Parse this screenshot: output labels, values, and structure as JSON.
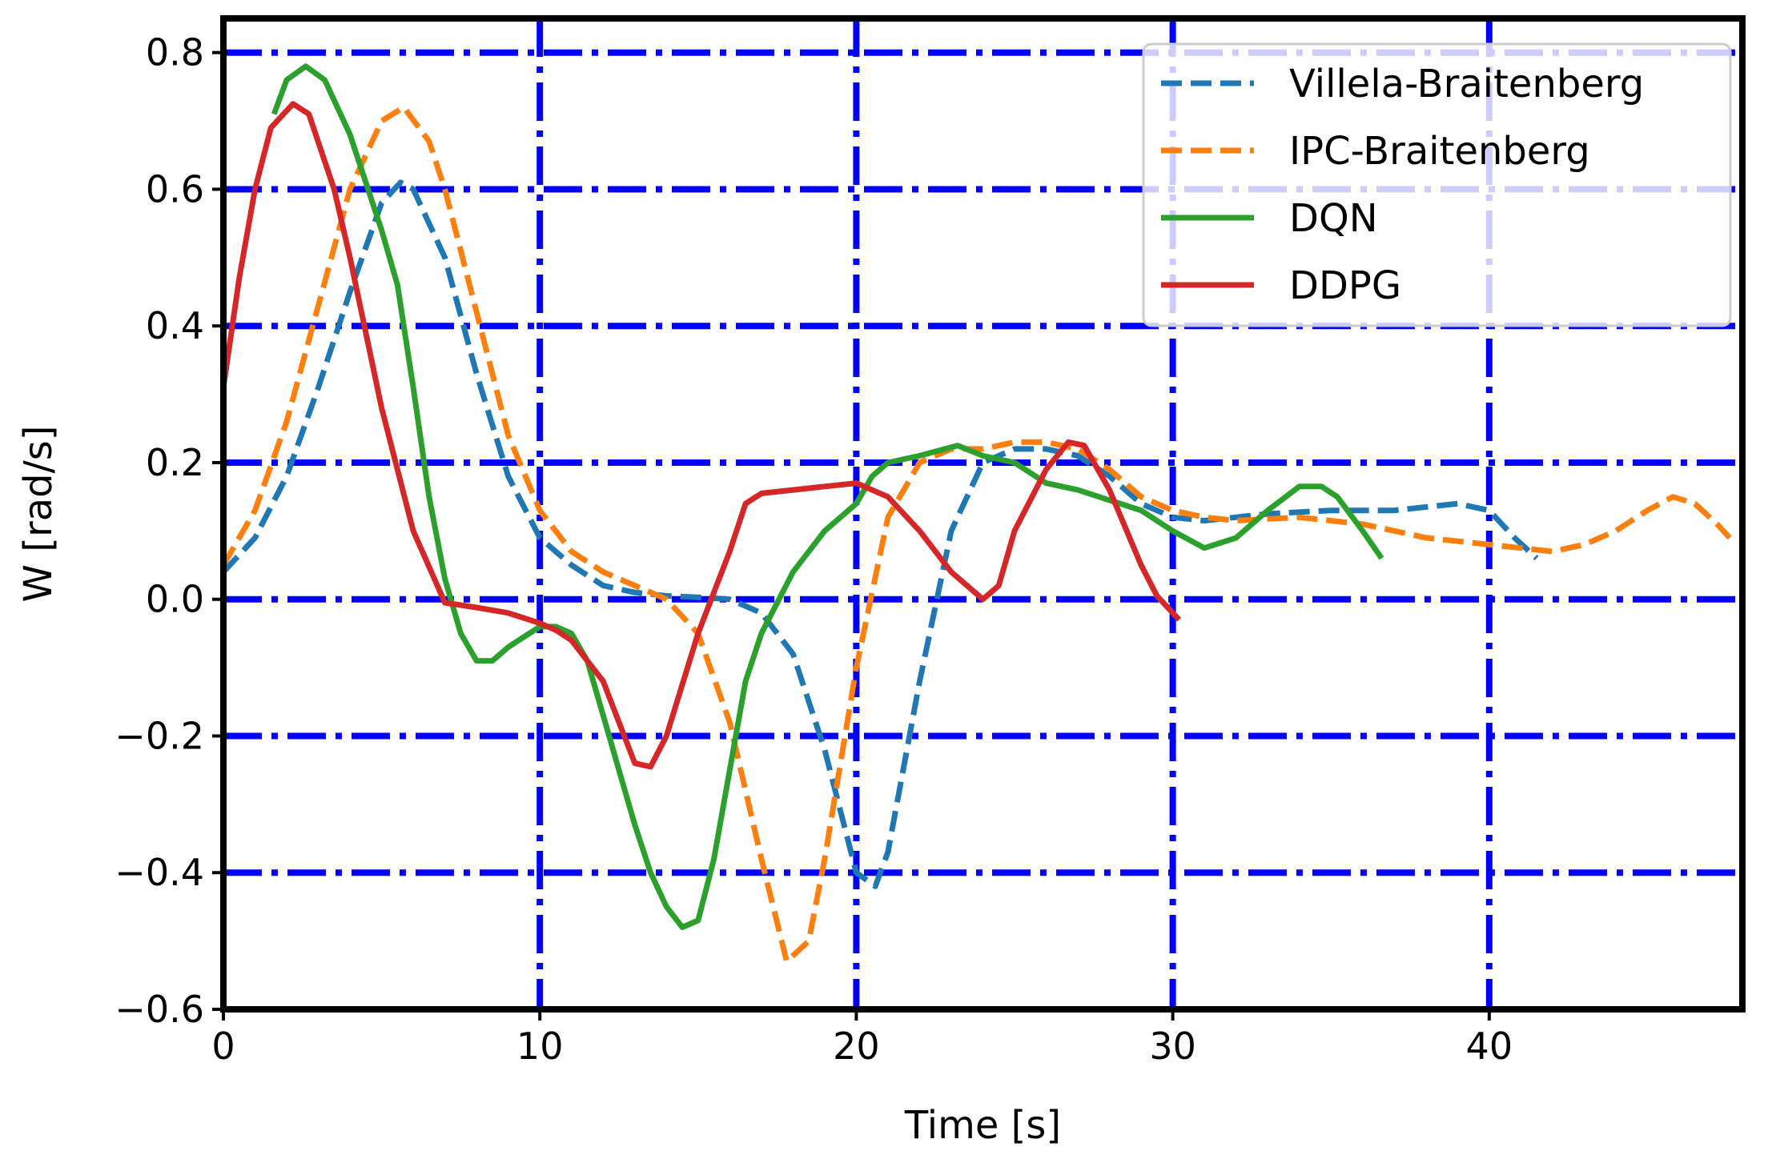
{
  "chart_data": {
    "type": "line",
    "xlabel": "Time [s]",
    "ylabel": "W [rad/s]",
    "xlim": [
      0,
      48
    ],
    "ylim": [
      -0.6,
      0.85
    ],
    "xticks": [
      0,
      10,
      20,
      30,
      40
    ],
    "xtick_labels": [
      "0",
      "10",
      "20",
      "30",
      "40"
    ],
    "yticks": [
      -0.6,
      -0.4,
      -0.2,
      0.0,
      0.2,
      0.4,
      0.6,
      0.8
    ],
    "ytick_labels": [
      "−0.6",
      "−0.4",
      "−0.2",
      "0.0",
      "0.2",
      "0.4",
      "0.6",
      "0.8"
    ],
    "grid": true,
    "grid_color": "#0000ff",
    "grid_style": "dash-dot",
    "legend_position": "top-right",
    "series": [
      {
        "name": "Villela-Braitenberg",
        "color": "#1f77b4",
        "style": "dashed",
        "points": [
          [
            0,
            0.04
          ],
          [
            1,
            0.09
          ],
          [
            2,
            0.18
          ],
          [
            3,
            0.31
          ],
          [
            4,
            0.45
          ],
          [
            5,
            0.58
          ],
          [
            5.6,
            0.61
          ],
          [
            6,
            0.6
          ],
          [
            7,
            0.5
          ],
          [
            8,
            0.33
          ],
          [
            9,
            0.18
          ],
          [
            10,
            0.09
          ],
          [
            11,
            0.05
          ],
          [
            12,
            0.02
          ],
          [
            13,
            0.01
          ],
          [
            14,
            0.005
          ],
          [
            15,
            0.003
          ],
          [
            16,
            0.0
          ],
          [
            17,
            -0.02
          ],
          [
            18,
            -0.08
          ],
          [
            19,
            -0.22
          ],
          [
            20,
            -0.4
          ],
          [
            20.6,
            -0.42
          ],
          [
            21,
            -0.37
          ],
          [
            22,
            -0.12
          ],
          [
            23,
            0.1
          ],
          [
            24,
            0.2
          ],
          [
            25,
            0.22
          ],
          [
            26,
            0.22
          ],
          [
            27,
            0.21
          ],
          [
            28,
            0.18
          ],
          [
            29,
            0.14
          ],
          [
            30,
            0.12
          ],
          [
            31,
            0.115
          ],
          [
            33,
            0.125
          ],
          [
            35,
            0.13
          ],
          [
            37,
            0.13
          ],
          [
            39,
            0.14
          ],
          [
            40,
            0.13
          ],
          [
            40.8,
            0.09
          ],
          [
            41.5,
            0.06
          ]
        ]
      },
      {
        "name": "IPC-Braitenberg",
        "color": "#ff7f0e",
        "style": "dashed",
        "points": [
          [
            0,
            0.05
          ],
          [
            1,
            0.13
          ],
          [
            2,
            0.26
          ],
          [
            3,
            0.43
          ],
          [
            4,
            0.6
          ],
          [
            5,
            0.7
          ],
          [
            5.7,
            0.72
          ],
          [
            6.5,
            0.67
          ],
          [
            7,
            0.6
          ],
          [
            8,
            0.42
          ],
          [
            9,
            0.24
          ],
          [
            10,
            0.13
          ],
          [
            11,
            0.07
          ],
          [
            12,
            0.04
          ],
          [
            13,
            0.02
          ],
          [
            14,
            0.0
          ],
          [
            15,
            -0.05
          ],
          [
            16,
            -0.18
          ],
          [
            17,
            -0.38
          ],
          [
            17.8,
            -0.53
          ],
          [
            18.5,
            -0.5
          ],
          [
            19,
            -0.38
          ],
          [
            20,
            -0.1
          ],
          [
            21,
            0.12
          ],
          [
            22,
            0.2
          ],
          [
            23,
            0.22
          ],
          [
            24,
            0.22
          ],
          [
            25,
            0.23
          ],
          [
            26,
            0.23
          ],
          [
            27,
            0.22
          ],
          [
            28,
            0.19
          ],
          [
            29,
            0.15
          ],
          [
            30,
            0.13
          ],
          [
            31,
            0.12
          ],
          [
            32,
            0.115
          ],
          [
            34,
            0.12
          ],
          [
            36,
            0.11
          ],
          [
            37,
            0.1
          ],
          [
            38,
            0.09
          ],
          [
            40,
            0.08
          ],
          [
            41,
            0.075
          ],
          [
            42,
            0.07
          ],
          [
            43,
            0.08
          ],
          [
            44,
            0.1
          ],
          [
            45,
            0.13
          ],
          [
            45.8,
            0.15
          ],
          [
            46.5,
            0.14
          ],
          [
            47.2,
            0.11
          ],
          [
            47.6,
            0.09
          ]
        ]
      },
      {
        "name": "DQN",
        "color": "#2ca02c",
        "style": "solid",
        "points": [
          [
            1.6,
            0.71
          ],
          [
            2,
            0.76
          ],
          [
            2.6,
            0.78
          ],
          [
            3.2,
            0.76
          ],
          [
            4,
            0.68
          ],
          [
            5,
            0.54
          ],
          [
            5.5,
            0.46
          ],
          [
            6,
            0.31
          ],
          [
            6.5,
            0.15
          ],
          [
            7,
            0.03
          ],
          [
            7.5,
            -0.05
          ],
          [
            8,
            -0.09
          ],
          [
            8.5,
            -0.09
          ],
          [
            9,
            -0.07
          ],
          [
            9.5,
            -0.055
          ],
          [
            10,
            -0.04
          ],
          [
            10.5,
            -0.04
          ],
          [
            11,
            -0.05
          ],
          [
            11.5,
            -0.09
          ],
          [
            12,
            -0.17
          ],
          [
            12.5,
            -0.25
          ],
          [
            13,
            -0.33
          ],
          [
            13.5,
            -0.4
          ],
          [
            14,
            -0.45
          ],
          [
            14.5,
            -0.48
          ],
          [
            15,
            -0.47
          ],
          [
            15.5,
            -0.38
          ],
          [
            16,
            -0.25
          ],
          [
            16.5,
            -0.12
          ],
          [
            17,
            -0.05
          ],
          [
            18,
            0.04
          ],
          [
            19,
            0.1
          ],
          [
            20,
            0.14
          ],
          [
            20.5,
            0.18
          ],
          [
            21,
            0.2
          ],
          [
            22,
            0.21
          ],
          [
            23.2,
            0.225
          ],
          [
            24,
            0.21
          ],
          [
            25,
            0.2
          ],
          [
            26,
            0.17
          ],
          [
            27,
            0.16
          ],
          [
            28,
            0.145
          ],
          [
            29,
            0.13
          ],
          [
            30,
            0.1
          ],
          [
            31,
            0.075
          ],
          [
            32,
            0.09
          ],
          [
            33,
            0.13
          ],
          [
            34,
            0.165
          ],
          [
            34.7,
            0.165
          ],
          [
            35.2,
            0.15
          ],
          [
            36,
            0.1
          ],
          [
            36.6,
            0.06
          ]
        ]
      },
      {
        "name": "DDPG",
        "color": "#d62728",
        "style": "solid",
        "points": [
          [
            0,
            0.31
          ],
          [
            0.5,
            0.47
          ],
          [
            1,
            0.6
          ],
          [
            1.5,
            0.69
          ],
          [
            2.2,
            0.725
          ],
          [
            2.7,
            0.71
          ],
          [
            3.5,
            0.6
          ],
          [
            4,
            0.5
          ],
          [
            5,
            0.28
          ],
          [
            6,
            0.1
          ],
          [
            7,
            -0.005
          ],
          [
            8,
            -0.012
          ],
          [
            9,
            -0.02
          ],
          [
            10,
            -0.035
          ],
          [
            10.5,
            -0.045
          ],
          [
            11,
            -0.06
          ],
          [
            12,
            -0.12
          ],
          [
            12.5,
            -0.18
          ],
          [
            13,
            -0.24
          ],
          [
            13.5,
            -0.245
          ],
          [
            14,
            -0.2
          ],
          [
            15,
            -0.05
          ],
          [
            16,
            0.07
          ],
          [
            16.5,
            0.14
          ],
          [
            17,
            0.155
          ],
          [
            18,
            0.16
          ],
          [
            19,
            0.165
          ],
          [
            20,
            0.17
          ],
          [
            21,
            0.15
          ],
          [
            22,
            0.1
          ],
          [
            23,
            0.04
          ],
          [
            24,
            0.0
          ],
          [
            24.5,
            0.02
          ],
          [
            25,
            0.1
          ],
          [
            26,
            0.19
          ],
          [
            26.7,
            0.23
          ],
          [
            27.2,
            0.225
          ],
          [
            28,
            0.16
          ],
          [
            29,
            0.05
          ],
          [
            29.5,
            0.005
          ],
          [
            30.2,
            -0.03
          ]
        ]
      }
    ]
  }
}
